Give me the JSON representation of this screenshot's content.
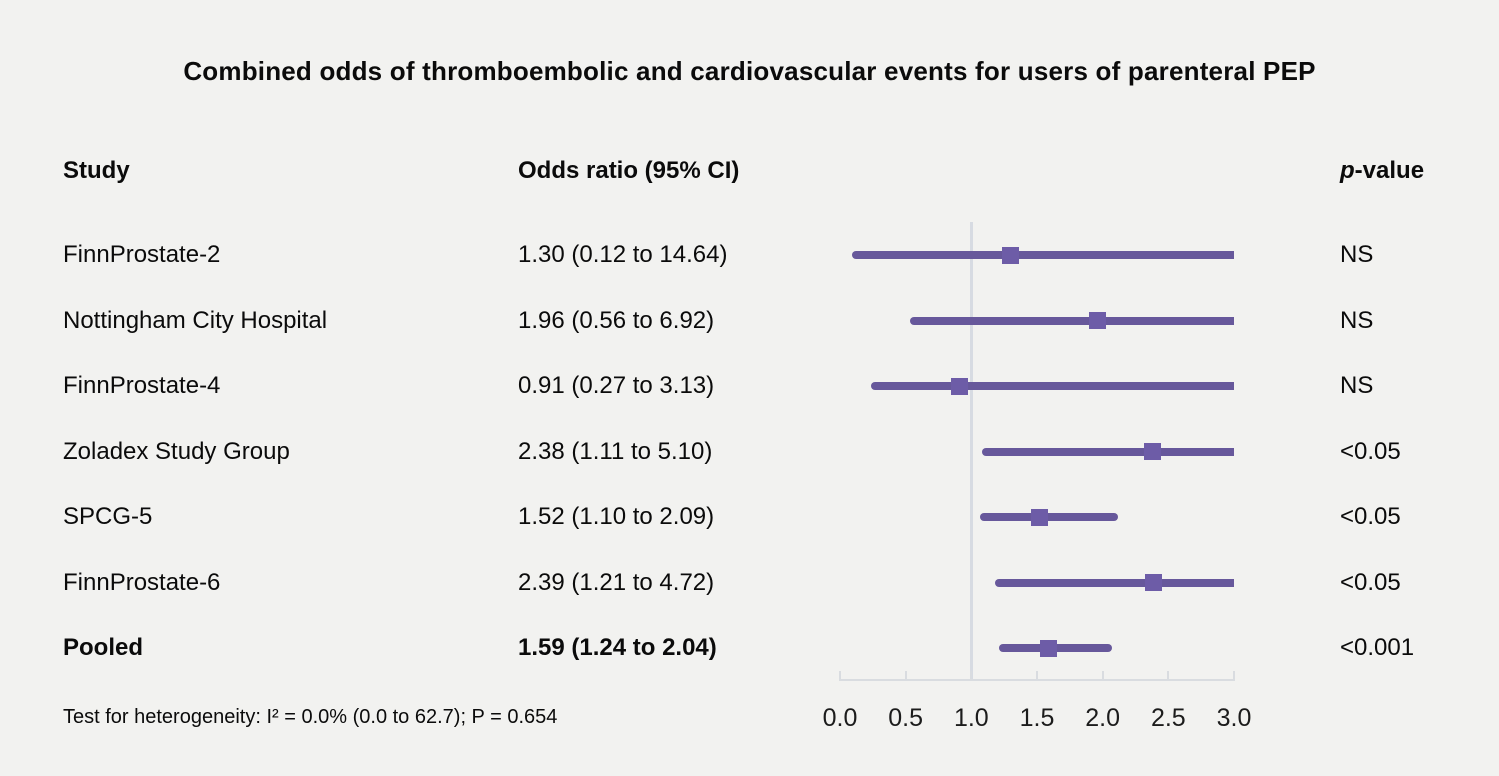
{
  "title": "Combined odds of thromboembolic and cardiovascular events for users of parenteral PEP",
  "columns": {
    "study": "Study",
    "odds_ratio": "Odds ratio (95% CI)",
    "pvalue_italic": "p",
    "pvalue_rest": "-value"
  },
  "footer": {
    "heterogeneity": "Test for heterogeneity: I² = 0.0% (0.0 to 62.7); P = 0.654"
  },
  "colors": {
    "background": "#f2f2f0",
    "ci_line": "#67589b",
    "marker": "#6d5ca7",
    "reference_line": "#d7dbe2",
    "axis": "#d9dce0",
    "text": "#0b0b0b"
  },
  "chart_data": {
    "type": "forest",
    "title": "Combined odds of thromboembolic and cardiovascular events for users of parenteral PEP",
    "rows": [
      {
        "study": "FinnProstate-2",
        "or": 1.3,
        "ci_low": 0.12,
        "ci_high": 14.64,
        "or_label": "1.30 (0.12 to 14.64)",
        "p": "NS",
        "bold": false
      },
      {
        "study": "Nottingham City Hospital",
        "or": 1.96,
        "ci_low": 0.56,
        "ci_high": 6.92,
        "or_label": "1.96 (0.56 to 6.92)",
        "p": "NS",
        "bold": false
      },
      {
        "study": "FinnProstate-4",
        "or": 0.91,
        "ci_low": 0.27,
        "ci_high": 3.13,
        "or_label": "0.91 (0.27 to 3.13)",
        "p": "NS",
        "bold": false
      },
      {
        "study": "Zoladex Study Group",
        "or": 2.38,
        "ci_low": 1.11,
        "ci_high": 5.1,
        "or_label": "2.38 (1.11 to 5.10)",
        "p": "<0.05",
        "bold": false
      },
      {
        "study": "SPCG-5",
        "or": 1.52,
        "ci_low": 1.1,
        "ci_high": 2.09,
        "or_label": "1.52 (1.10 to 2.09)",
        "p": "<0.05",
        "bold": false
      },
      {
        "study": "FinnProstate-6",
        "or": 2.39,
        "ci_low": 1.21,
        "ci_high": 4.72,
        "or_label": "2.39 (1.21 to 4.72)",
        "p": "<0.05",
        "bold": false
      },
      {
        "study": "Pooled",
        "or": 1.59,
        "ci_low": 1.24,
        "ci_high": 2.04,
        "or_label": "1.59 (1.24 to 2.04)",
        "p": "<0.001",
        "bold": true
      }
    ],
    "axis": {
      "xmin": 0.0,
      "xmax": 3.0,
      "ticks": [
        0.0,
        0.5,
        1.0,
        1.5,
        2.0,
        2.5,
        3.0
      ],
      "tick_labels": [
        "0.0",
        "0.5",
        "1.0",
        "1.5",
        "2.0",
        "2.5",
        "3.0"
      ],
      "reference_line": 1.0,
      "grid": false
    }
  }
}
